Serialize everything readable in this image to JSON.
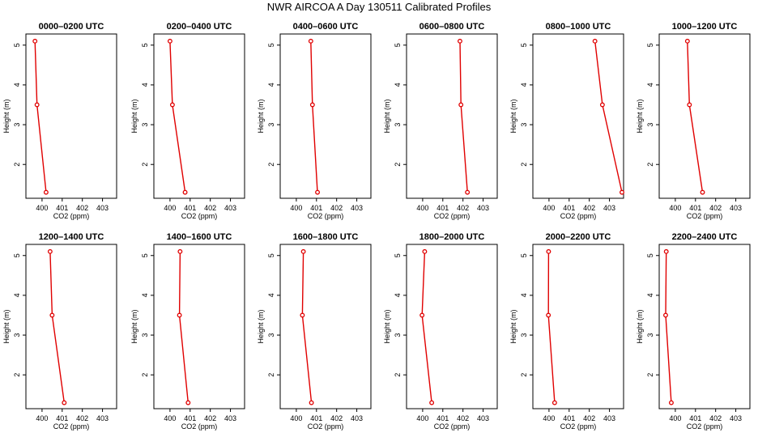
{
  "title": "NWR AIRCOA A  Day 130511  Calibrated Profiles",
  "chart_data": {
    "type": "line",
    "xlabel": "CO2 (ppm)",
    "ylabel": "Height (m)",
    "xlim": [
      399.2,
      403.7
    ],
    "ylim": [
      1.15,
      5.28
    ],
    "xticks": [
      400,
      401,
      402,
      403
    ],
    "yticks": [
      2,
      3,
      4,
      5
    ],
    "heights": [
      5.1,
      3.5,
      1.3
    ],
    "line_color": "#e00000",
    "panels": [
      {
        "title": "0000–0200 UTC",
        "x": [
          399.65,
          399.75,
          400.2
        ]
      },
      {
        "title": "0200–0400 UTC",
        "x": [
          400.0,
          400.12,
          400.75
        ]
      },
      {
        "title": "0400–0600 UTC",
        "x": [
          400.72,
          400.8,
          401.05
        ]
      },
      {
        "title": "0600–0800 UTC",
        "x": [
          401.85,
          401.9,
          402.22
        ]
      },
      {
        "title": "0800–1000 UTC",
        "x": [
          402.28,
          402.65,
          403.62
        ]
      },
      {
        "title": "1000–1200 UTC",
        "x": [
          400.6,
          400.7,
          401.35
        ]
      },
      {
        "title": "1200–1400 UTC",
        "x": [
          400.4,
          400.5,
          401.1
        ]
      },
      {
        "title": "1400–1600 UTC",
        "x": [
          400.5,
          400.47,
          400.9
        ]
      },
      {
        "title": "1600–1800 UTC",
        "x": [
          400.35,
          400.3,
          400.75
        ]
      },
      {
        "title": "1800–2000 UTC",
        "x": [
          400.1,
          399.97,
          400.45
        ]
      },
      {
        "title": "2000–2200 UTC",
        "x": [
          399.98,
          399.97,
          400.28
        ]
      },
      {
        "title": "2200–2400 UTC",
        "x": [
          399.55,
          399.52,
          399.8
        ]
      }
    ]
  }
}
